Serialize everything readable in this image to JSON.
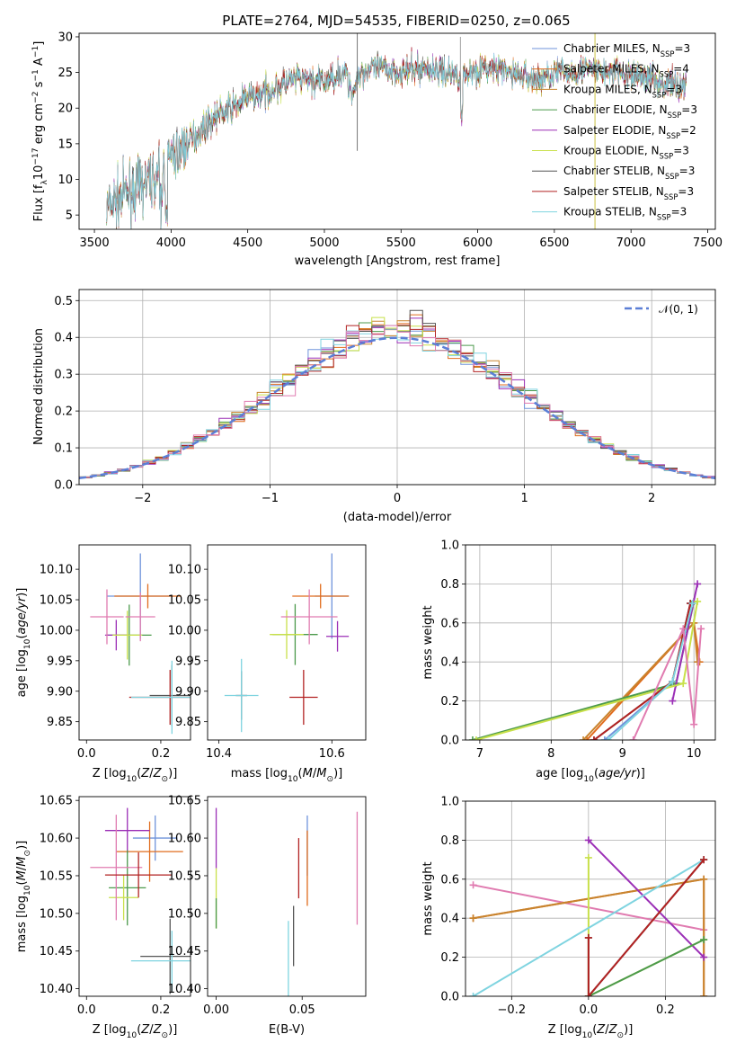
{
  "figure": {
    "title": "PLATE=2764, MJD=54535, FIBERID=0250, z=0.065"
  },
  "palette": {
    "chabrier_miles": "#6f93db",
    "salpeter_miles": "#e06c1d",
    "kroupa_miles": "#c8842e",
    "chabrier_elodie": "#4c9a4c",
    "salpeter_elodie": "#9b2fb6",
    "kroupa_elodie": "#c8e04a",
    "chabrier_stelib": "#555555",
    "salpeter_stelib": "#b22222",
    "kroupa_stelib": "#7fd4e0",
    "pink": "#e07bb0",
    "ncurve": "#5b7fd6"
  },
  "chart_data": [
    {
      "id": "spectrum",
      "type": "line",
      "title": "PLATE=2764, MJD=54535, FIBERID=0250, z=0.065",
      "xlabel": "wavelength [Angstrom, rest frame]",
      "ylabel": "Flux [f_λ10^-17 erg cm^-2 s^-1 A^-1]",
      "xlim": [
        3400,
        7550
      ],
      "ylim": [
        3,
        30.5
      ],
      "xticks": [
        3500,
        4000,
        4500,
        5000,
        5500,
        6000,
        6500,
        7000,
        7500
      ],
      "yticks": [
        5,
        10,
        15,
        20,
        25,
        30
      ],
      "legend_position": "top-right",
      "legend": [
        "Chabrier MILES, N_SSP=3",
        "Salpeter MILES, N_SSP=4",
        "Kroupa MILES, N_SSP=3",
        "Chabrier ELODIE, N_SSP=3",
        "Salpeter ELODIE, N_SSP=2",
        "Kroupa ELODIE, N_SSP=3",
        "Chabrier STELIB, N_SSP=3",
        "Salpeter STELIB, N_SSP=3",
        "Kroupa STELIB, N_SSP=3"
      ],
      "continuum_x": [
        3580,
        3700,
        3800,
        3900,
        4000,
        4100,
        4200,
        4300,
        4400,
        4500,
        4600,
        4700,
        4800,
        4900,
        5000,
        5100,
        5200,
        5300,
        5400,
        5500,
        5600,
        5700,
        5800,
        5900,
        6000,
        6100,
        6200,
        6300,
        6400,
        6500,
        6600,
        6700,
        6800,
        6900,
        7000,
        7100,
        7200,
        7350
      ],
      "continuum_y": [
        6,
        8,
        9,
        10.5,
        13,
        15,
        17,
        19,
        20,
        21.5,
        22,
        23,
        24,
        24,
        23.5,
        25,
        24.5,
        25.5,
        25.5,
        25,
        25.5,
        25.5,
        25,
        24.5,
        25.5,
        25.5,
        25,
        24.5,
        24,
        25,
        25,
        25.5,
        25,
        25,
        24.5,
        24.5,
        23.5,
        23
      ]
    },
    {
      "id": "residuals",
      "type": "line",
      "xlabel": "(data-model)/error",
      "ylabel": "Normed distribution",
      "xlim": [
        -2.5,
        2.5
      ],
      "ylim": [
        0,
        0.53
      ],
      "xticks": [
        -2,
        -1,
        0,
        1,
        2
      ],
      "yticks": [
        0.0,
        0.1,
        0.2,
        0.3,
        0.4,
        0.5
      ],
      "legend_position": "top-right",
      "legend": [
        "𝒩(0, 1)"
      ],
      "reference_curve": "normal(0,1)",
      "hist_bin_width": 0.1
    },
    {
      "id": "age_vs_Z",
      "type": "scatter",
      "xlabel": "Z [log10(Z/Z⊙)]",
      "ylabel": "age  [log10(age/yr)]",
      "xlim": [
        -0.02,
        0.28
      ],
      "ylim": [
        9.82,
        10.14
      ],
      "xticks": [
        0.0,
        0.2
      ],
      "yticks": [
        9.85,
        9.9,
        9.95,
        10.0,
        10.05,
        10.1
      ],
      "points": [
        {
          "x": 0.145,
          "y": 10.056,
          "xerr": 0.09,
          "yerr": 0.07,
          "color": "#6f93db"
        },
        {
          "x": 0.165,
          "y": 10.056,
          "xerr": 0.09,
          "yerr": 0.02,
          "color": "#e06c1d"
        },
        {
          "x": 0.115,
          "y": 9.992,
          "xerr": 0.06,
          "yerr": 0.05,
          "color": "#4c9a4c"
        },
        {
          "x": 0.08,
          "y": 9.992,
          "xerr": 0.03,
          "yerr": 0.025,
          "color": "#9b2fb6"
        },
        {
          "x": 0.11,
          "y": 9.992,
          "xerr": 0.04,
          "yerr": 0.04,
          "color": "#c8e04a"
        },
        {
          "x": 0.055,
          "y": 10.022,
          "xerr": 0.045,
          "yerr": 0.045,
          "color": "#e07bb0"
        },
        {
          "x": 0.145,
          "y": 10.022,
          "xerr": 0.04,
          "yerr": 0.04,
          "color": "#e07bb0"
        },
        {
          "x": 0.23,
          "y": 9.893,
          "xerr": 0.06,
          "yerr": 0.05,
          "color": "#555555"
        },
        {
          "x": 0.225,
          "y": 9.89,
          "xerr": 0.11,
          "yerr": 0.045,
          "color": "#b22222"
        },
        {
          "x": 0.23,
          "y": 9.89,
          "xerr": 0.11,
          "yerr": 0.06,
          "color": "#7fd4e0"
        }
      ]
    },
    {
      "id": "age_vs_mass",
      "type": "scatter",
      "xlabel": "mass [log10(M/M⊙)]",
      "ylabel": "",
      "xlim": [
        10.38,
        10.66
      ],
      "ylim": [
        9.82,
        10.14
      ],
      "xticks": [
        10.4,
        10.6
      ],
      "yticks": [
        9.85,
        9.9,
        9.95,
        10.0,
        10.05,
        10.1
      ],
      "points": [
        {
          "x": 10.6,
          "y": 10.056,
          "xerr": 0.03,
          "yerr": 0.07,
          "color": "#6f93db"
        },
        {
          "x": 10.58,
          "y": 10.056,
          "xerr": 0.05,
          "yerr": 0.02,
          "color": "#e06c1d"
        },
        {
          "x": 10.535,
          "y": 9.993,
          "xerr": 0.04,
          "yerr": 0.05,
          "color": "#4c9a4c"
        },
        {
          "x": 10.61,
          "y": 9.99,
          "xerr": 0.02,
          "yerr": 0.025,
          "color": "#9b2fb6"
        },
        {
          "x": 10.52,
          "y": 9.993,
          "xerr": 0.03,
          "yerr": 0.04,
          "color": "#c8e04a"
        },
        {
          "x": 10.56,
          "y": 10.022,
          "xerr": 0.05,
          "yerr": 0.045,
          "color": "#e07bb0"
        },
        {
          "x": 10.44,
          "y": 9.893,
          "xerr": 0.01,
          "yerr": 0.04,
          "color": "#555555"
        },
        {
          "x": 10.55,
          "y": 9.89,
          "xerr": 0.025,
          "yerr": 0.045,
          "color": "#b22222"
        },
        {
          "x": 10.44,
          "y": 9.893,
          "xerr": 0.03,
          "yerr": 0.06,
          "color": "#7fd4e0"
        }
      ]
    },
    {
      "id": "weight_vs_age",
      "type": "line",
      "xlabel": "age  [log10(age/yr)]",
      "ylabel": "mass weight",
      "xlim": [
        6.8,
        10.3
      ],
      "ylim": [
        0,
        1.0
      ],
      "xticks": [
        7,
        8,
        9,
        10
      ],
      "yticks": [
        0.0,
        0.2,
        0.4,
        0.6,
        0.8,
        1.0
      ],
      "grid": true,
      "series": [
        {
          "color": "#6f93db",
          "x": [
            8.75,
            9.7,
            9.95
          ],
          "y": [
            0.0,
            0.3,
            0.7
          ]
        },
        {
          "color": "#e06c1d",
          "x": [
            8.5,
            10.0,
            10.08
          ],
          "y": [
            0.0,
            0.6,
            0.4
          ]
        },
        {
          "color": "#c8842e",
          "x": [
            8.45,
            10.0,
            10.05
          ],
          "y": [
            0.0,
            0.6,
            0.4
          ]
        },
        {
          "color": "#4c9a4c",
          "x": [
            6.9,
            9.75,
            10.0
          ],
          "y": [
            0.0,
            0.29,
            0.71
          ]
        },
        {
          "color": "#9b2fb6",
          "x": [
            9.7,
            10.05
          ],
          "y": [
            0.2,
            0.8
          ]
        },
        {
          "color": "#c8e04a",
          "x": [
            6.95,
            9.85,
            10.05
          ],
          "y": [
            0.0,
            0.29,
            0.71
          ]
        },
        {
          "color": "#555555",
          "x": [
            8.6,
            9.7,
            9.95
          ],
          "y": [
            0.0,
            0.3,
            0.7
          ]
        },
        {
          "color": "#b22222",
          "x": [
            8.6,
            9.7,
            9.95
          ],
          "y": [
            0.0,
            0.3,
            0.7
          ]
        },
        {
          "color": "#7fd4e0",
          "x": [
            8.8,
            9.7,
            9.98
          ],
          "y": [
            0.0,
            0.3,
            0.7
          ]
        },
        {
          "color": "#e07bb0",
          "x": [
            9.15,
            9.85,
            10.0,
            10.1
          ],
          "y": [
            0.0,
            0.57,
            0.08,
            0.57
          ]
        }
      ]
    },
    {
      "id": "mass_vs_Z",
      "type": "scatter",
      "xlabel": "Z [log10(Z/Z⊙)]",
      "ylabel": "mass [log10(M/M⊙)]",
      "xlim": [
        -0.02,
        0.28
      ],
      "ylim": [
        10.39,
        10.655
      ],
      "xticks": [
        0.0,
        0.2
      ],
      "yticks": [
        10.4,
        10.45,
        10.5,
        10.55,
        10.6,
        10.65
      ],
      "points": [
        {
          "x": 0.185,
          "y": 10.6,
          "xerr": 0.06,
          "yerr": 0.03,
          "color": "#6f93db"
        },
        {
          "x": 0.17,
          "y": 10.582,
          "xerr": 0.09,
          "yerr": 0.04,
          "color": "#e06c1d"
        },
        {
          "x": 0.11,
          "y": 10.61,
          "xerr": 0.06,
          "yerr": 0.03,
          "color": "#9b2fb6"
        },
        {
          "x": 0.11,
          "y": 10.534,
          "xerr": 0.05,
          "yerr": 0.05,
          "color": "#4c9a4c"
        },
        {
          "x": 0.1,
          "y": 10.521,
          "xerr": 0.04,
          "yerr": 0.03,
          "color": "#c8e04a"
        },
        {
          "x": 0.08,
          "y": 10.561,
          "xerr": 0.07,
          "yerr": 0.07,
          "color": "#e07bb0"
        },
        {
          "x": 0.14,
          "y": 10.551,
          "xerr": 0.09,
          "yerr": 0.03,
          "color": "#b22222"
        },
        {
          "x": 0.225,
          "y": 10.443,
          "xerr": 0.08,
          "yerr": 0.05,
          "color": "#555555"
        },
        {
          "x": 0.23,
          "y": 10.437,
          "xerr": 0.11,
          "yerr": 0.04,
          "color": "#7fd4e0"
        }
      ]
    },
    {
      "id": "mass_vs_ebv",
      "type": "scatter",
      "xlabel": "E(B-V)",
      "ylabel": "",
      "xlim": [
        -0.005,
        0.087
      ],
      "ylim": [
        10.39,
        10.655
      ],
      "xticks": [
        0.0,
        0.05
      ],
      "yticks": [
        10.4,
        10.45,
        10.5,
        10.55,
        10.6,
        10.65
      ],
      "points": [
        {
          "x": 0.0,
          "y": 10.6,
          "xerr": 0,
          "yerr": 0.04,
          "color": "#9b2fb6"
        },
        {
          "x": 0.0,
          "y": 10.52,
          "xerr": 0,
          "yerr": 0.04,
          "color": "#c8e04a"
        },
        {
          "x": 0.0,
          "y": 10.5,
          "xerr": 0,
          "yerr": 0.02,
          "color": "#4c9a4c"
        },
        {
          "x": 0.048,
          "y": 10.56,
          "xerr": 0,
          "yerr": 0.04,
          "color": "#b22222"
        },
        {
          "x": 0.045,
          "y": 10.47,
          "xerr": 0,
          "yerr": 0.04,
          "color": "#555555"
        },
        {
          "x": 0.042,
          "y": 10.44,
          "xerr": 0,
          "yerr": 0.05,
          "color": "#7fd4e0"
        },
        {
          "x": 0.053,
          "y": 10.59,
          "xerr": 0,
          "yerr": 0.04,
          "color": "#6f93db"
        },
        {
          "x": 0.053,
          "y": 10.56,
          "xerr": 0,
          "yerr": 0.05,
          "color": "#e06c1d"
        },
        {
          "x": 0.082,
          "y": 10.56,
          "xerr": 0,
          "yerr": 0.075,
          "color": "#e07bb0"
        }
      ]
    },
    {
      "id": "weight_vs_Z",
      "type": "line",
      "xlabel": "Z [log10(Z/Z⊙)]",
      "ylabel": "mass weight",
      "xlim": [
        -0.32,
        0.33
      ],
      "ylim": [
        0,
        1.0
      ],
      "xticks": [
        -0.2,
        0.0,
        0.2
      ],
      "yticks": [
        0.0,
        0.2,
        0.4,
        0.6,
        0.8,
        1.0
      ],
      "grid": true,
      "series": [
        {
          "color": "#e07bb0",
          "x": [
            -0.3,
            0.3
          ],
          "y": [
            0.57,
            0.34
          ]
        },
        {
          "color": "#e06c1d",
          "x": [
            -0.3,
            0.3,
            0.3
          ],
          "y": [
            0.4,
            0.6,
            0.0
          ]
        },
        {
          "color": "#c8842e",
          "x": [
            -0.3,
            0.3,
            0.3
          ],
          "y": [
            0.4,
            0.6,
            0.0
          ]
        },
        {
          "color": "#9b2fb6",
          "x": [
            0.0,
            0.3
          ],
          "y": [
            0.8,
            0.2
          ]
        },
        {
          "color": "#c8e04a",
          "x": [
            0.0,
            0.0,
            0.3
          ],
          "y": [
            0.71,
            0.0,
            0.29
          ]
        },
        {
          "color": "#4c9a4c",
          "x": [
            0.0,
            0.3
          ],
          "y": [
            0.0,
            0.29
          ]
        },
        {
          "color": "#7fd4e0",
          "x": [
            -0.3,
            0.3
          ],
          "y": [
            0.0,
            0.7
          ]
        },
        {
          "color": "#555555",
          "x": [
            0.0,
            0.0,
            0.3
          ],
          "y": [
            0.3,
            0.0,
            0.7
          ]
        },
        {
          "color": "#b22222",
          "x": [
            0.0,
            0.0,
            0.3
          ],
          "y": [
            0.3,
            0.0,
            0.7
          ]
        }
      ]
    }
  ]
}
